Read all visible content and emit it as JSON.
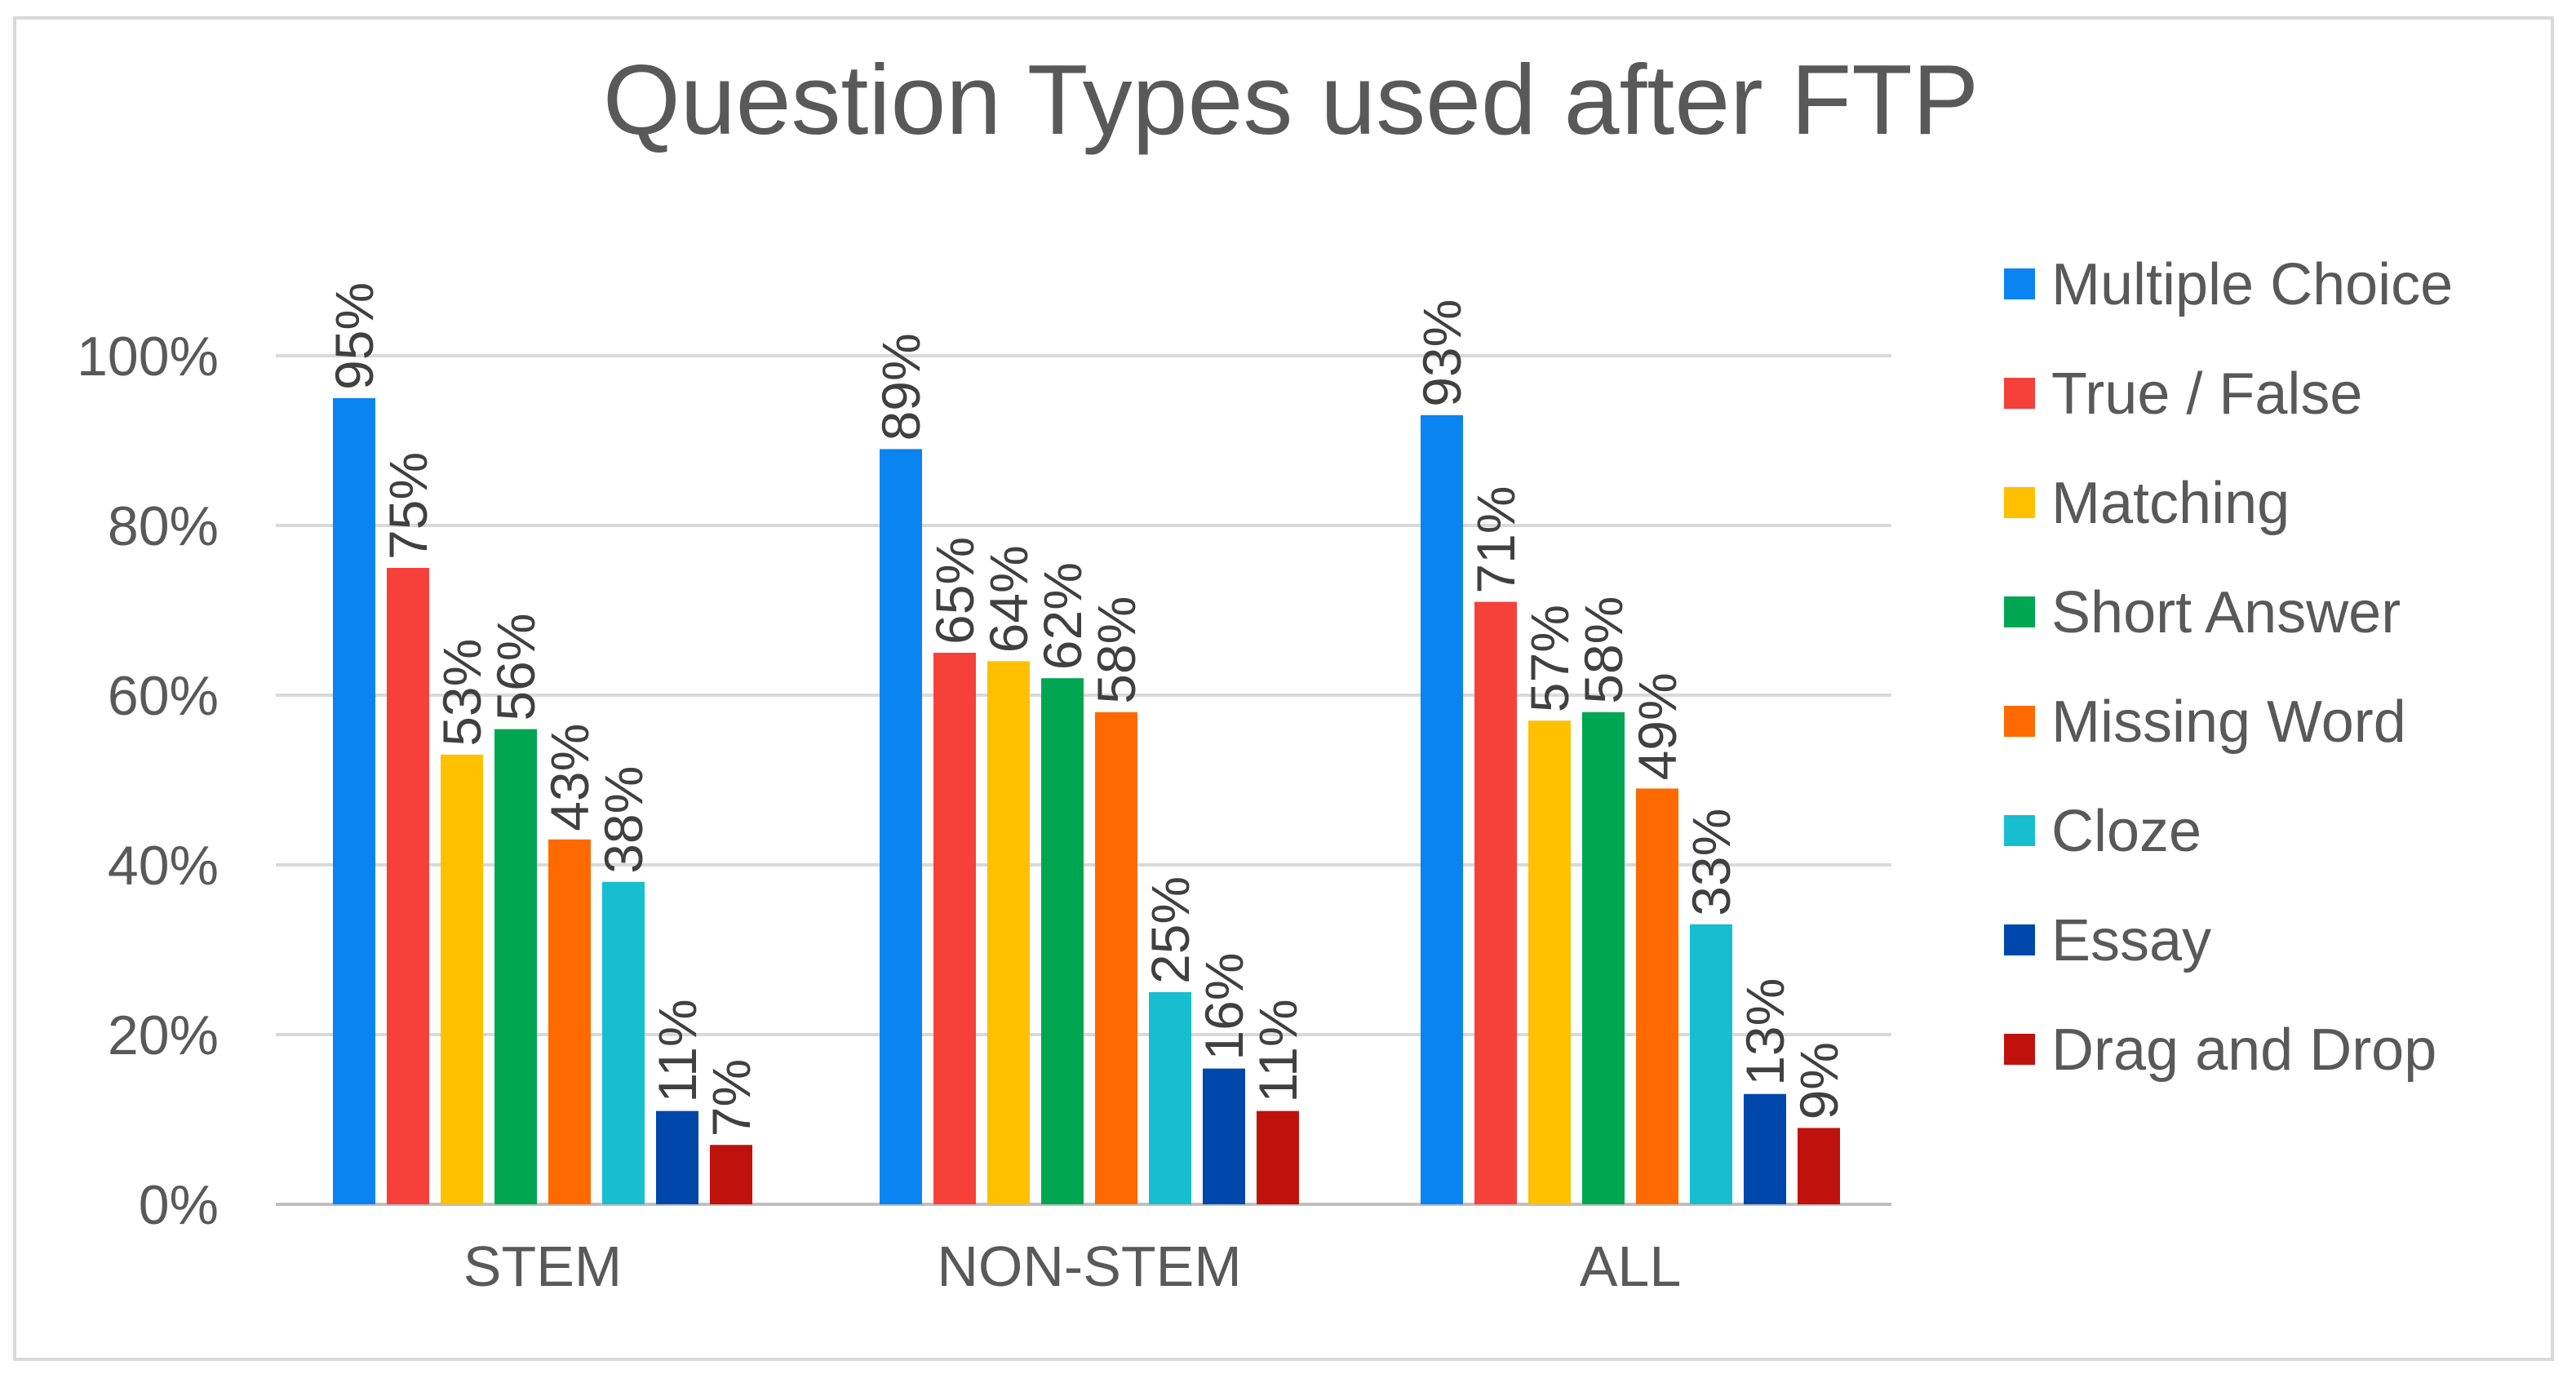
{
  "chart_data": {
    "type": "bar",
    "title": "Question Types used after FTP",
    "categories": [
      "STEM",
      "NON-STEM",
      "ALL"
    ],
    "ylim": [
      0,
      100
    ],
    "ytick_values": [
      0,
      20,
      40,
      60,
      80,
      100
    ],
    "ytick_labels": [
      "0%",
      "20%",
      "40%",
      "60%",
      "80%",
      "100%"
    ],
    "xlabel": "",
    "ylabel": "",
    "grid": true,
    "legend_position": "right",
    "series": [
      {
        "name": "Multiple Choice",
        "color": "#0A84F0",
        "values": [
          95,
          89,
          93
        ],
        "labels": [
          "95%",
          "89%",
          "93%"
        ]
      },
      {
        "name": "True / False",
        "color": "#F5413A",
        "values": [
          75,
          65,
          71
        ],
        "labels": [
          "75%",
          "65%",
          "71%"
        ]
      },
      {
        "name": "Matching",
        "color": "#FFC000",
        "values": [
          53,
          64,
          57
        ],
        "labels": [
          "53%",
          "64%",
          "57%"
        ]
      },
      {
        "name": "Short Answer",
        "color": "#00A651",
        "values": [
          56,
          62,
          58
        ],
        "labels": [
          "56%",
          "62%",
          "58%"
        ]
      },
      {
        "name": "Missing Word",
        "color": "#FF6A00",
        "values": [
          43,
          58,
          49
        ],
        "labels": [
          "43%",
          "58%",
          "49%"
        ]
      },
      {
        "name": "Cloze",
        "color": "#17BECF",
        "values": [
          38,
          25,
          33
        ],
        "labels": [
          "38%",
          "25%",
          "33%"
        ]
      },
      {
        "name": "Essay",
        "color": "#0047AB",
        "values": [
          11,
          16,
          13
        ],
        "labels": [
          "11%",
          "16%",
          "13%"
        ]
      },
      {
        "name": "Drag and Drop",
        "color": "#C0120C",
        "values": [
          7,
          11,
          9
        ],
        "labels": [
          "7%",
          "11%",
          "9%"
        ]
      }
    ]
  }
}
